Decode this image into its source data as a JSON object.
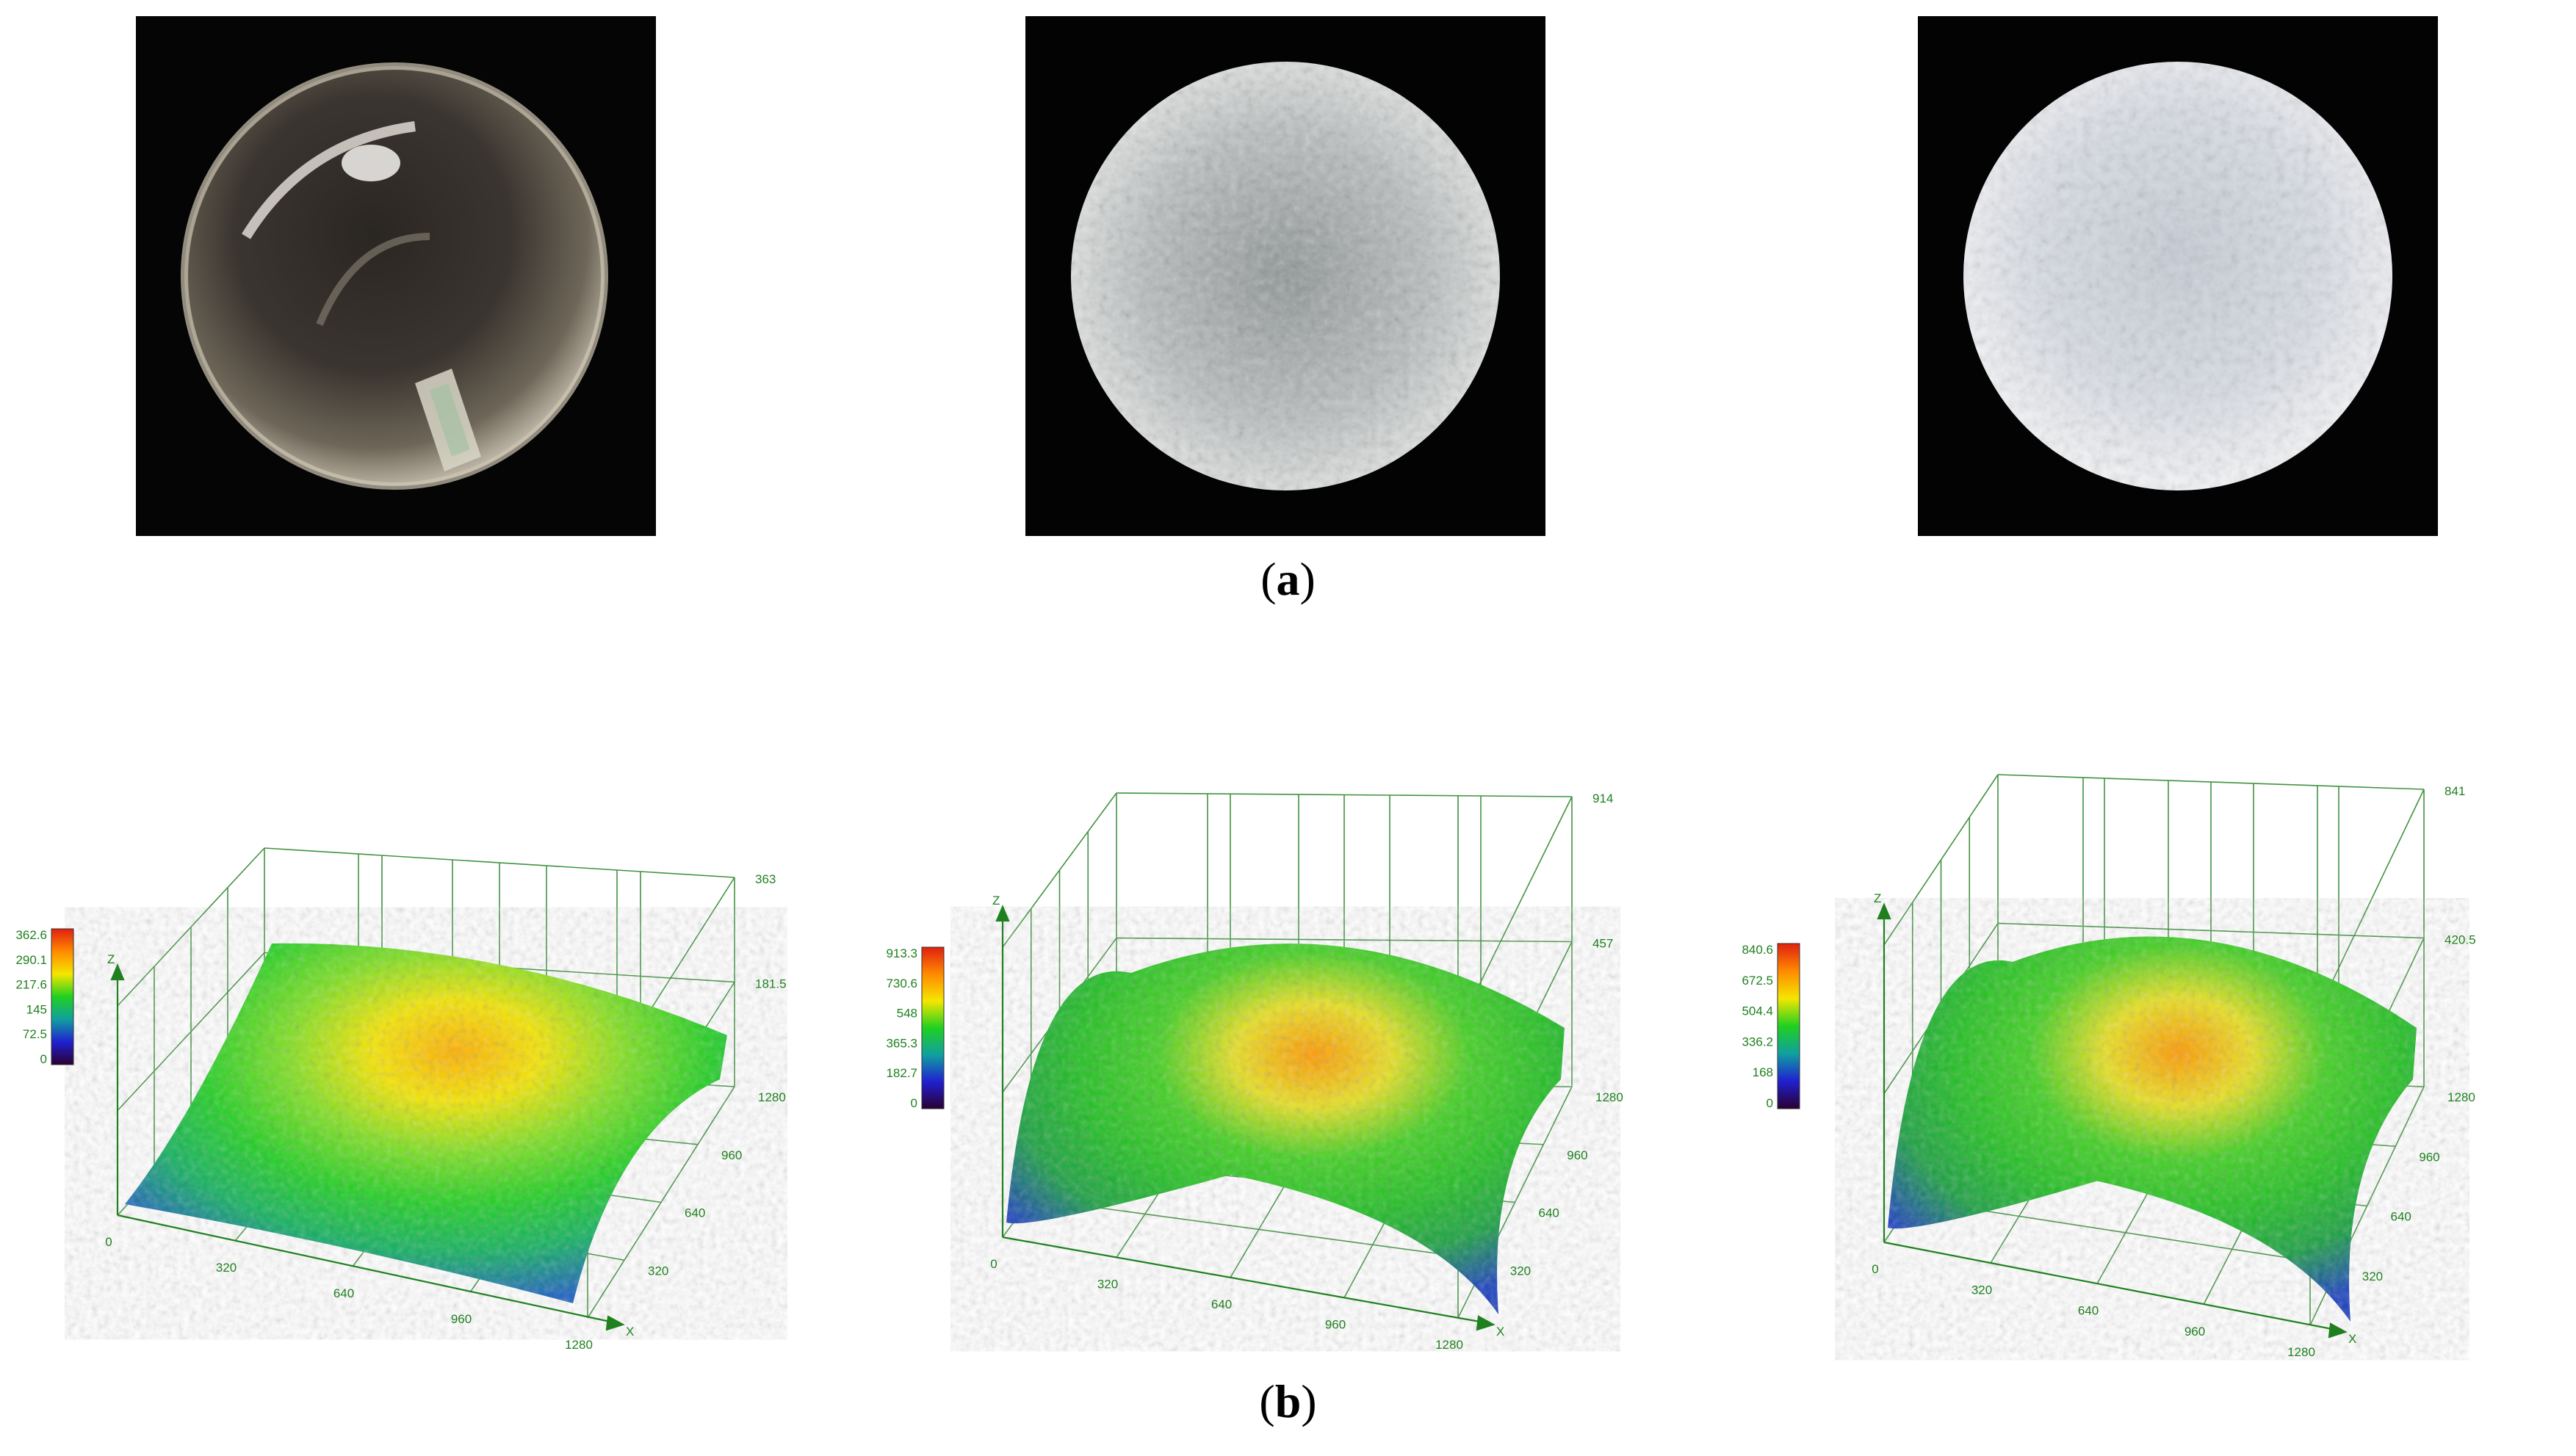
{
  "figure": {
    "panel_a_label": {
      "open": "(",
      "letter": "a",
      "close": ")"
    },
    "panel_b_label": {
      "open": "(",
      "letter": "b",
      "close": ")"
    }
  },
  "photos": [
    {
      "name": "glass-sphere-polished",
      "appearance": "transparent"
    },
    {
      "name": "glass-sphere-frosted-1",
      "appearance": "frosted"
    },
    {
      "name": "glass-sphere-frosted-2",
      "appearance": "frosted-bright"
    }
  ],
  "surface_plots": [
    {
      "z_axis_label": "Z",
      "x_axis_label": "X",
      "colorbar_ticks": [
        "362.6",
        "290.1",
        "217.6",
        "145",
        "72.5",
        "0"
      ],
      "x_ticks": [
        "0",
        "320",
        "640",
        "960",
        "1280"
      ],
      "y_ticks": [
        "320",
        "640",
        "960",
        "1280"
      ],
      "z_ticks": [
        "363",
        "181.5"
      ]
    },
    {
      "z_axis_label": "Z",
      "x_axis_label": "X",
      "colorbar_ticks": [
        "913.3",
        "730.6",
        "548",
        "365.3",
        "182.7",
        "0"
      ],
      "x_ticks": [
        "0",
        "320",
        "640",
        "960",
        "1280"
      ],
      "y_ticks": [
        "320",
        "640",
        "960",
        "1280"
      ],
      "z_ticks": [
        "914",
        "457"
      ]
    },
    {
      "z_axis_label": "Z",
      "x_axis_label": "X",
      "colorbar_ticks": [
        "840.6",
        "672.5",
        "504.4",
        "336.2",
        "168",
        "0"
      ],
      "x_ticks": [
        "0",
        "320",
        "640",
        "960",
        "1280"
      ],
      "y_ticks": [
        "320",
        "640",
        "960",
        "1280"
      ],
      "z_ticks": [
        "841",
        "420.5"
      ]
    }
  ],
  "colors": {
    "axis_green": "#208020",
    "spectrum": [
      "#e02010",
      "#ff8a00",
      "#f5e600",
      "#20d020",
      "#10a0a0",
      "#2020d0",
      "#2a0030"
    ]
  }
}
